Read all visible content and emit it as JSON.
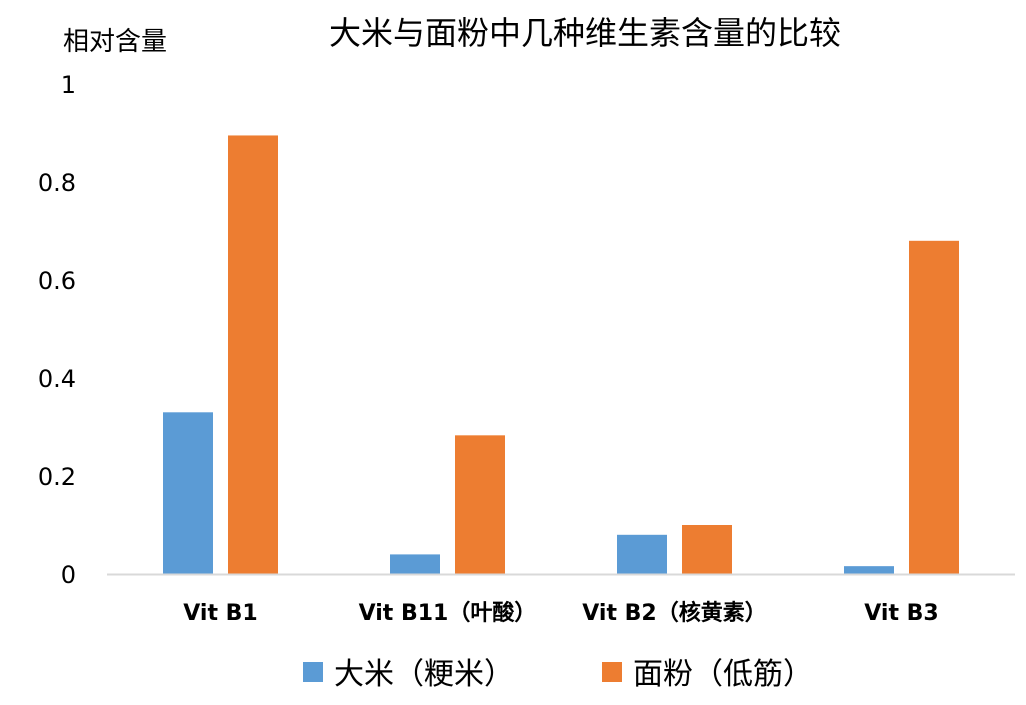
{
  "chart_data": {
    "type": "bar",
    "title": "大米与面粉中几种维生素含量的比较",
    "ylabel": "相对含量",
    "xlabel": "",
    "categories": [
      "Vit B1",
      "Vit B11（叶酸）",
      "Vit B2（核黄素）",
      "Vit B3"
    ],
    "series": [
      {
        "name": "大米（粳米）",
        "color": "#5B9BD5",
        "values": [
          0.33,
          0.04,
          0.08,
          0.016
        ]
      },
      {
        "name": "面粉（低筋）",
        "color": "#ED7D31",
        "values": [
          0.895,
          0.283,
          0.1,
          0.68
        ]
      }
    ],
    "ylim": [
      0,
      1
    ],
    "yticks": [
      "0",
      "0.2",
      "0.4",
      "0.6",
      "0.8",
      "1"
    ],
    "grid": false,
    "legend": "bottom"
  }
}
